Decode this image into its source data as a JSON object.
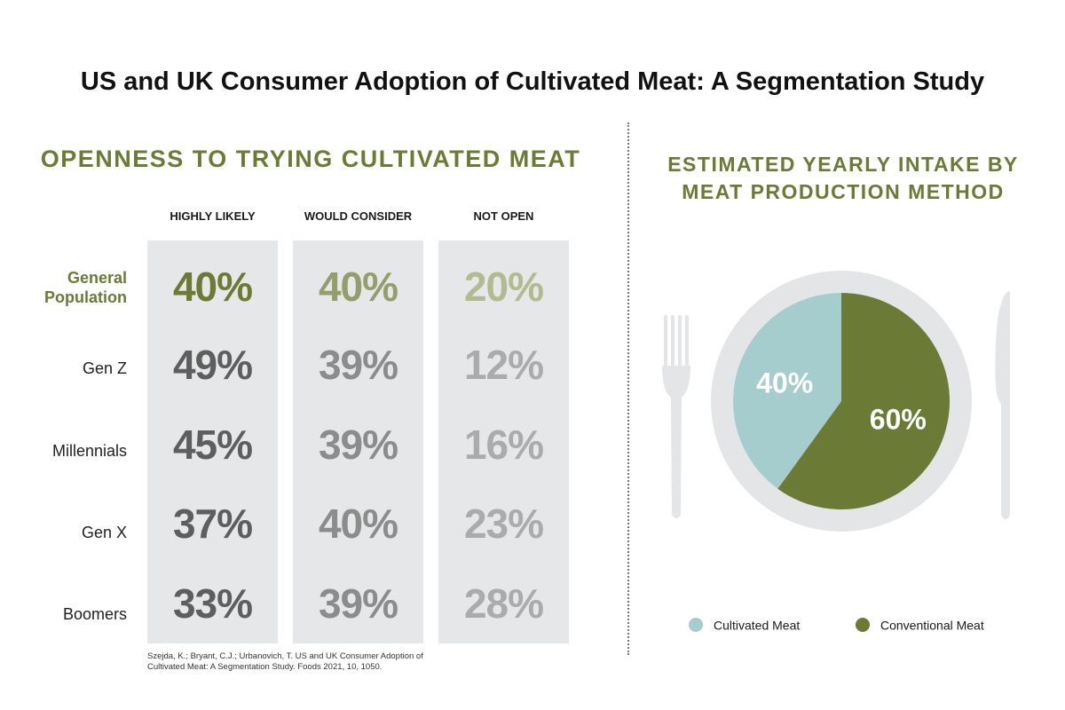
{
  "title": "US and UK Consumer Adoption of Cultivated Meat: A Segmentation Study",
  "citation": "Szejda, K.; Bryant, C.J.; Urbanovich, T. US and UK Consumer Adoption of Cultivated Meat: A Segmentation Study. Foods 2021, 10, 1050.",
  "colors": {
    "green": "#6b7a34",
    "teal": "#a6cdcd",
    "plate": "#e4e5e6",
    "column_bg": "#e6e7e8"
  },
  "chart_data": [
    {
      "type": "table",
      "title": "OPENNESS TO TRYING CULTIVATED MEAT",
      "columns": [
        "HIGHLY LIKELY",
        "WOULD CONSIDER",
        "NOT OPEN"
      ],
      "rows": [
        {
          "label": "General Population",
          "values": [
            "40%",
            "40%",
            "20%"
          ]
        },
        {
          "label": "Gen Z",
          "values": [
            "49%",
            "39%",
            "12%"
          ]
        },
        {
          "label": "Millennials",
          "values": [
            "45%",
            "39%",
            "16%"
          ]
        },
        {
          "label": "Gen X",
          "values": [
            "37%",
            "40%",
            "23%"
          ]
        },
        {
          "label": "Boomers",
          "values": [
            "33%",
            "39%",
            "28%"
          ]
        }
      ],
      "row_label_lines": [
        [
          "General",
          "Population"
        ],
        [
          "Gen Z"
        ],
        [
          "Millennials"
        ],
        [
          "Gen X"
        ],
        [
          "Boomers"
        ]
      ]
    },
    {
      "type": "pie",
      "title": "ESTIMATED YEARLY INTAKE BY MEAT PRODUCTION METHOD",
      "title_lines": [
        "ESTIMATED YEARLY INTAKE BY",
        "MEAT PRODUCTION METHOD"
      ],
      "categories": [
        "Cultivated Meat",
        "Conventional Meat"
      ],
      "values": [
        40,
        60
      ],
      "labels": [
        "40%",
        "60%"
      ],
      "colors": [
        "#a6cdcd",
        "#6b7a34"
      ],
      "legend_position": "bottom"
    }
  ]
}
